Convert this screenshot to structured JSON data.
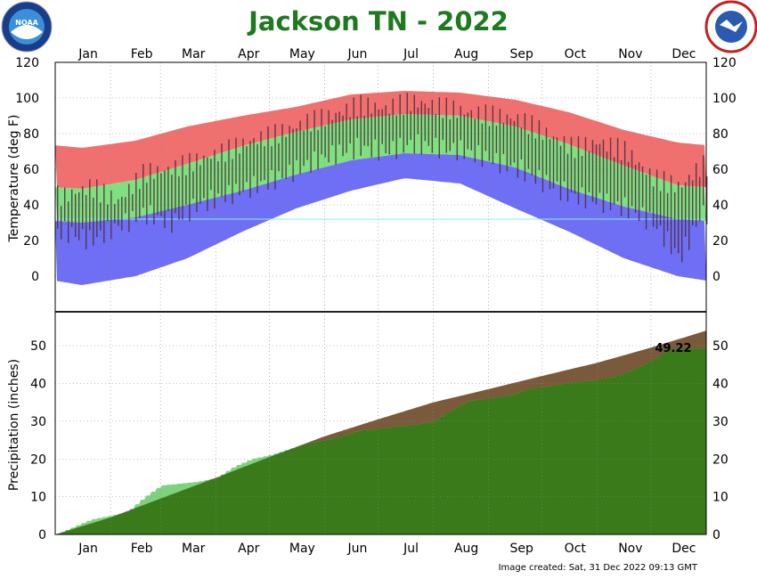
{
  "title": "Jackson TN - 2022",
  "footer": "Image created: Sat, 31 Dec 2022 09:13 GMT",
  "logos": {
    "left": "NOAA",
    "right": "NATIONAL WEATHER SERVICE"
  },
  "months": [
    "Jan",
    "Feb",
    "Mar",
    "Apr",
    "May",
    "Jun",
    "Jul",
    "Aug",
    "Sep",
    "Oct",
    "Nov",
    "Dec"
  ],
  "colors": {
    "title": "#1f7a1f",
    "record_high": "#f07070",
    "normal_band": "#80e080",
    "record_low": "#6f6ff5",
    "observed": "#4a2a3a",
    "normal_precip": "#7dd37d",
    "precip_surplus": "#7a5a3a",
    "precip_observed": "#3a7a1a",
    "line_32": "#80f0f0"
  },
  "chart_data": [
    {
      "type": "bar",
      "name": "temperature",
      "ylabel": "Temperature (deg F)",
      "ylim": [
        -20,
        120
      ],
      "yticks": [
        0,
        20,
        40,
        60,
        80,
        100,
        120
      ],
      "grid": true,
      "reference_line": 32,
      "normals": {
        "monthly_mid_day": [
          15,
          45,
          74,
          105,
          135,
          166,
          196,
          227,
          258,
          288,
          319,
          349
        ],
        "normal_high": [
          49,
          54,
          63,
          73,
          81,
          88,
          91,
          90,
          84,
          74,
          62,
          51
        ],
        "normal_low": [
          30,
          33,
          40,
          48,
          57,
          65,
          69,
          68,
          61,
          49,
          39,
          32
        ],
        "record_high": [
          72,
          76,
          84,
          90,
          95,
          102,
          104,
          103,
          99,
          92,
          82,
          75
        ],
        "record_low": [
          -5,
          0,
          10,
          25,
          38,
          48,
          55,
          52,
          38,
          25,
          10,
          0
        ]
      },
      "observed_sample": {
        "days": [
          5,
          20,
          35,
          50,
          65,
          80,
          95,
          110,
          125,
          140,
          155,
          170,
          185,
          200,
          215,
          230,
          245,
          260,
          275,
          290,
          305,
          320,
          335,
          350,
          362
        ],
        "high": [
          45,
          50,
          42,
          58,
          60,
          65,
          70,
          76,
          80,
          86,
          90,
          96,
          94,
          98,
          95,
          92,
          90,
          88,
          80,
          72,
          75,
          70,
          55,
          50,
          62
        ],
        "low": [
          25,
          20,
          28,
          35,
          30,
          40,
          45,
          50,
          55,
          62,
          68,
          72,
          70,
          74,
          72,
          70,
          65,
          60,
          52,
          45,
          42,
          38,
          30,
          10,
          35
        ]
      }
    },
    {
      "type": "area",
      "name": "precipitation",
      "ylabel": "Precipitation (inches)",
      "ylim": [
        0,
        59
      ],
      "yticks": [
        0,
        10,
        20,
        30,
        40,
        50
      ],
      "grid": true,
      "annotation": "49.22",
      "normal_cumulative": {
        "days": [
          0,
          31,
          59,
          90,
          120,
          151,
          181,
          212,
          243,
          273,
          304,
          334,
          365
        ],
        "values": [
          0,
          4.5,
          9.5,
          15,
          20.5,
          26,
          30.5,
          35,
          38.5,
          42,
          45.5,
          49.5,
          54
        ]
      },
      "observed_cumulative": {
        "days": [
          0,
          10,
          20,
          31,
          40,
          50,
          59,
          70,
          80,
          90,
          100,
          110,
          120,
          130,
          140,
          151,
          160,
          170,
          181,
          190,
          200,
          212,
          222,
          232,
          243,
          255,
          265,
          273,
          285,
          295,
          304,
          315,
          320,
          325,
          334,
          340,
          345,
          350,
          357,
          365
        ],
        "values": [
          0,
          2,
          4,
          5,
          6,
          10,
          13,
          13.5,
          14,
          15,
          18,
          20,
          21,
          22.5,
          24,
          25,
          26,
          27.5,
          28,
          28.5,
          29,
          30,
          33,
          35.5,
          36,
          37,
          38.5,
          39,
          40,
          40.5,
          41,
          42,
          43,
          44,
          46,
          48,
          49,
          49.2,
          49.22,
          49.22
        ]
      }
    }
  ]
}
